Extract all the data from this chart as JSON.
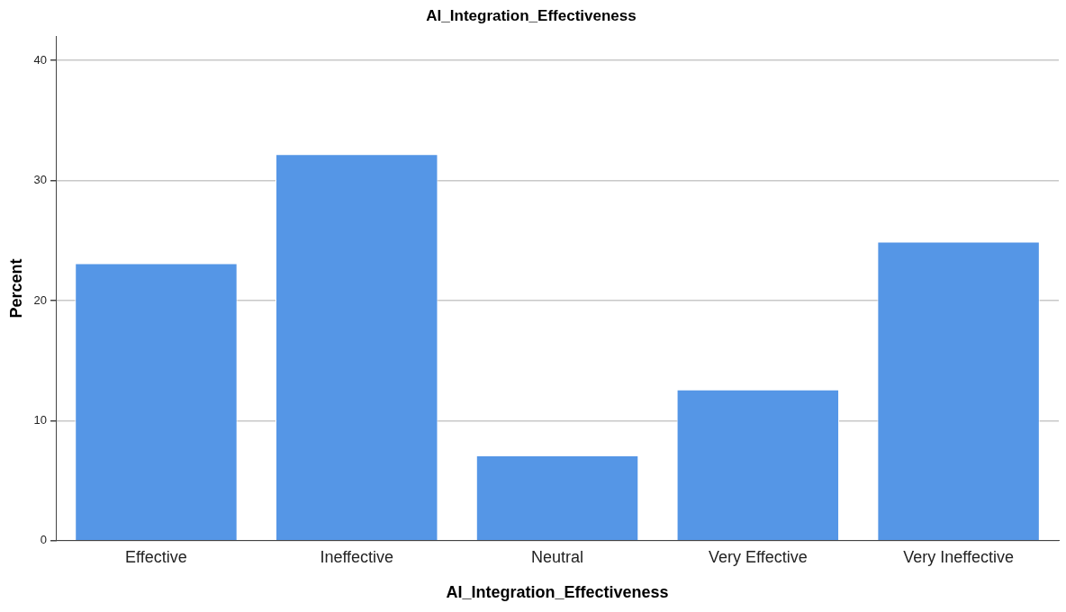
{
  "chart_data": {
    "type": "bar",
    "title": "AI_Integration_Effectiveness",
    "xlabel": "AI_Integration_Effectiveness",
    "ylabel": "Percent",
    "categories": [
      "Effective",
      "Ineffective",
      "Neutral",
      "Very Effective",
      "Very Ineffective"
    ],
    "values": [
      23.1,
      32.2,
      7.1,
      12.6,
      24.9
    ],
    "color": "#5596e6",
    "ylim": [
      0,
      42
    ],
    "yticks": [
      0,
      10,
      20,
      30,
      40
    ],
    "grid": "y",
    "legend": false
  }
}
